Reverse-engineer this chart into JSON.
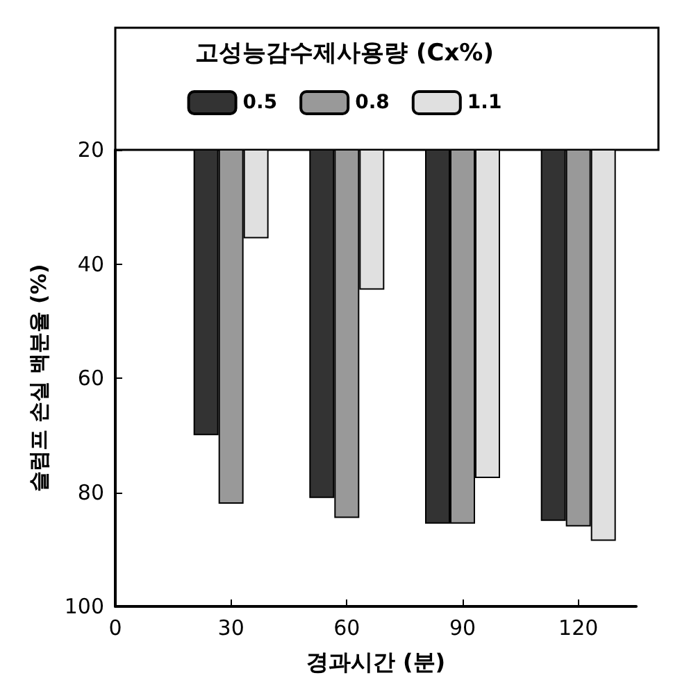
{
  "chart_data": {
    "type": "bar",
    "xlabel": "경과시간 (분)",
    "ylabel": "슬럼프 손실 백분율 (%)",
    "legend_title": "고성능감수제사용량 (Cx%)",
    "x": [
      30,
      60,
      90,
      120
    ],
    "series": [
      {
        "name": "0.5",
        "color": "#333333",
        "values": [
          70,
          81,
          85.5,
          85
        ]
      },
      {
        "name": "0.8",
        "color": "#999999",
        "values": [
          82,
          84.5,
          85.5,
          86
        ]
      },
      {
        "name": "1.1",
        "color": "#e0e0e0",
        "values": [
          35.5,
          44.5,
          77.5,
          88.5
        ]
      }
    ],
    "xlim": [
      0,
      135
    ],
    "xticks": [
      0,
      30,
      60,
      90,
      120
    ],
    "ylim": [
      100,
      20
    ],
    "yticks": [
      20,
      40,
      60,
      80,
      100
    ],
    "legend": "top",
    "grid": false
  }
}
